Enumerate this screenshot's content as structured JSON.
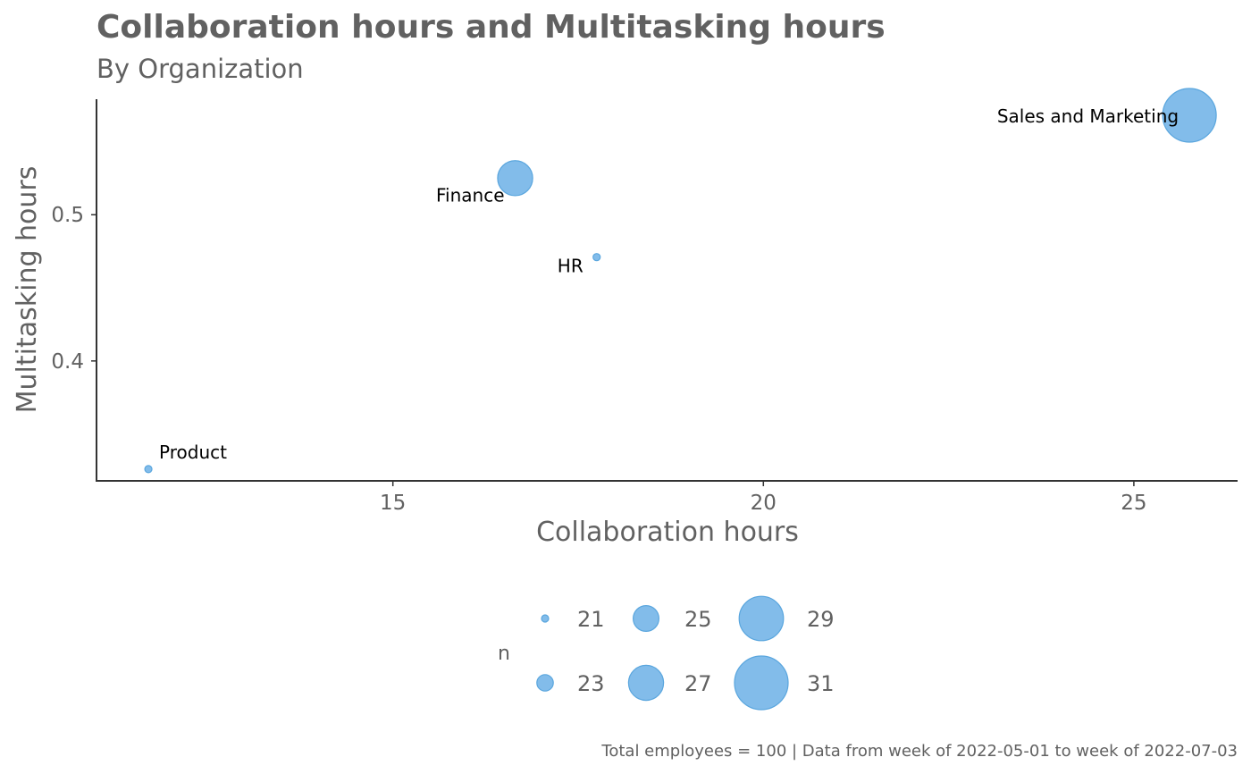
{
  "chart_data": {
    "type": "scatter",
    "title": "Collaboration hours and Multitasking hours",
    "subtitle": "By Organization",
    "xlabel": "Collaboration hours",
    "ylabel": "Multitasking hours",
    "caption": "Total employees = 100 | Data from week of 2022-05-01 to week of 2022-07-03",
    "xlim": [
      11,
      26.4
    ],
    "ylim": [
      0.318,
      0.579
    ],
    "x_ticks": [
      15,
      20,
      25
    ],
    "y_ticks": [
      0.4,
      0.5
    ],
    "grid": false,
    "point_color": "#66ADE5",
    "points": [
      {
        "label": "Product",
        "x": 11.7,
        "y": 0.326,
        "n": 21
      },
      {
        "label": "Finance",
        "x": 16.65,
        "y": 0.525,
        "n": 27
      },
      {
        "label": "HR",
        "x": 17.75,
        "y": 0.471,
        "n": 21
      },
      {
        "label": "Sales and Marketing",
        "x": 25.75,
        "y": 0.568,
        "n": 31
      }
    ],
    "legend": {
      "title": "n",
      "position": "bottom",
      "values": [
        21,
        25,
        29,
        23,
        27,
        31
      ]
    }
  }
}
